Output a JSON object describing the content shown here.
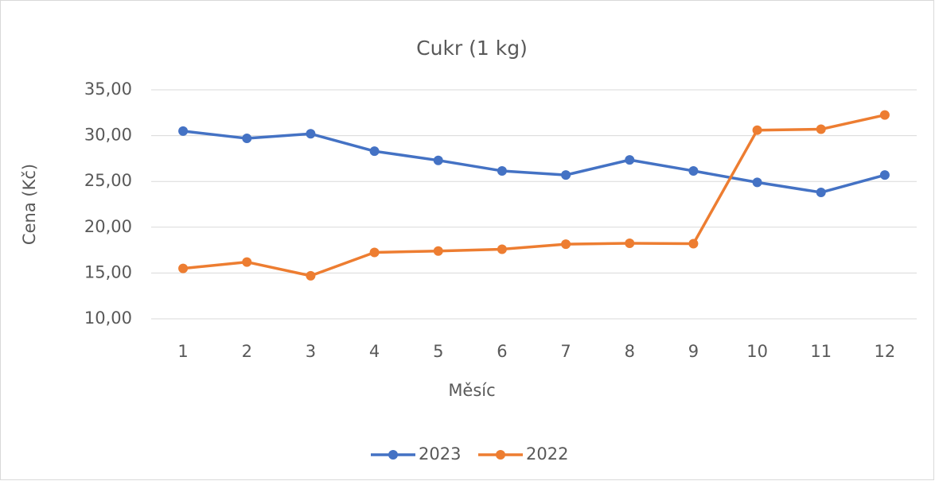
{
  "chart_data": {
    "type": "line",
    "title": "Cukr (1 kg)",
    "xlabel": "Měsíc",
    "ylabel": "Cena (Kč)",
    "categories": [
      "1",
      "2",
      "3",
      "4",
      "5",
      "6",
      "7",
      "8",
      "9",
      "10",
      "11",
      "12"
    ],
    "series": [
      {
        "name": "2023",
        "color": "#4472c4",
        "values": [
          30.5,
          29.7,
          30.2,
          28.3,
          27.3,
          26.15,
          25.7,
          27.35,
          26.15,
          24.9,
          23.8,
          25.7
        ]
      },
      {
        "name": "2022",
        "color": "#ed7d31",
        "values": [
          15.5,
          16.2,
          14.7,
          17.25,
          17.4,
          17.6,
          18.15,
          18.25,
          18.2,
          30.6,
          30.7,
          32.25
        ]
      }
    ],
    "ylim": [
      10,
      35
    ],
    "yticks": [
      {
        "value": 10,
        "label": "10,00"
      },
      {
        "value": 15,
        "label": "15,00"
      },
      {
        "value": 20,
        "label": "20,00"
      },
      {
        "value": 25,
        "label": "25,00"
      },
      {
        "value": 30,
        "label": "30,00"
      },
      {
        "value": 35,
        "label": "35,00"
      }
    ],
    "grid": true,
    "legend": "bottom"
  }
}
